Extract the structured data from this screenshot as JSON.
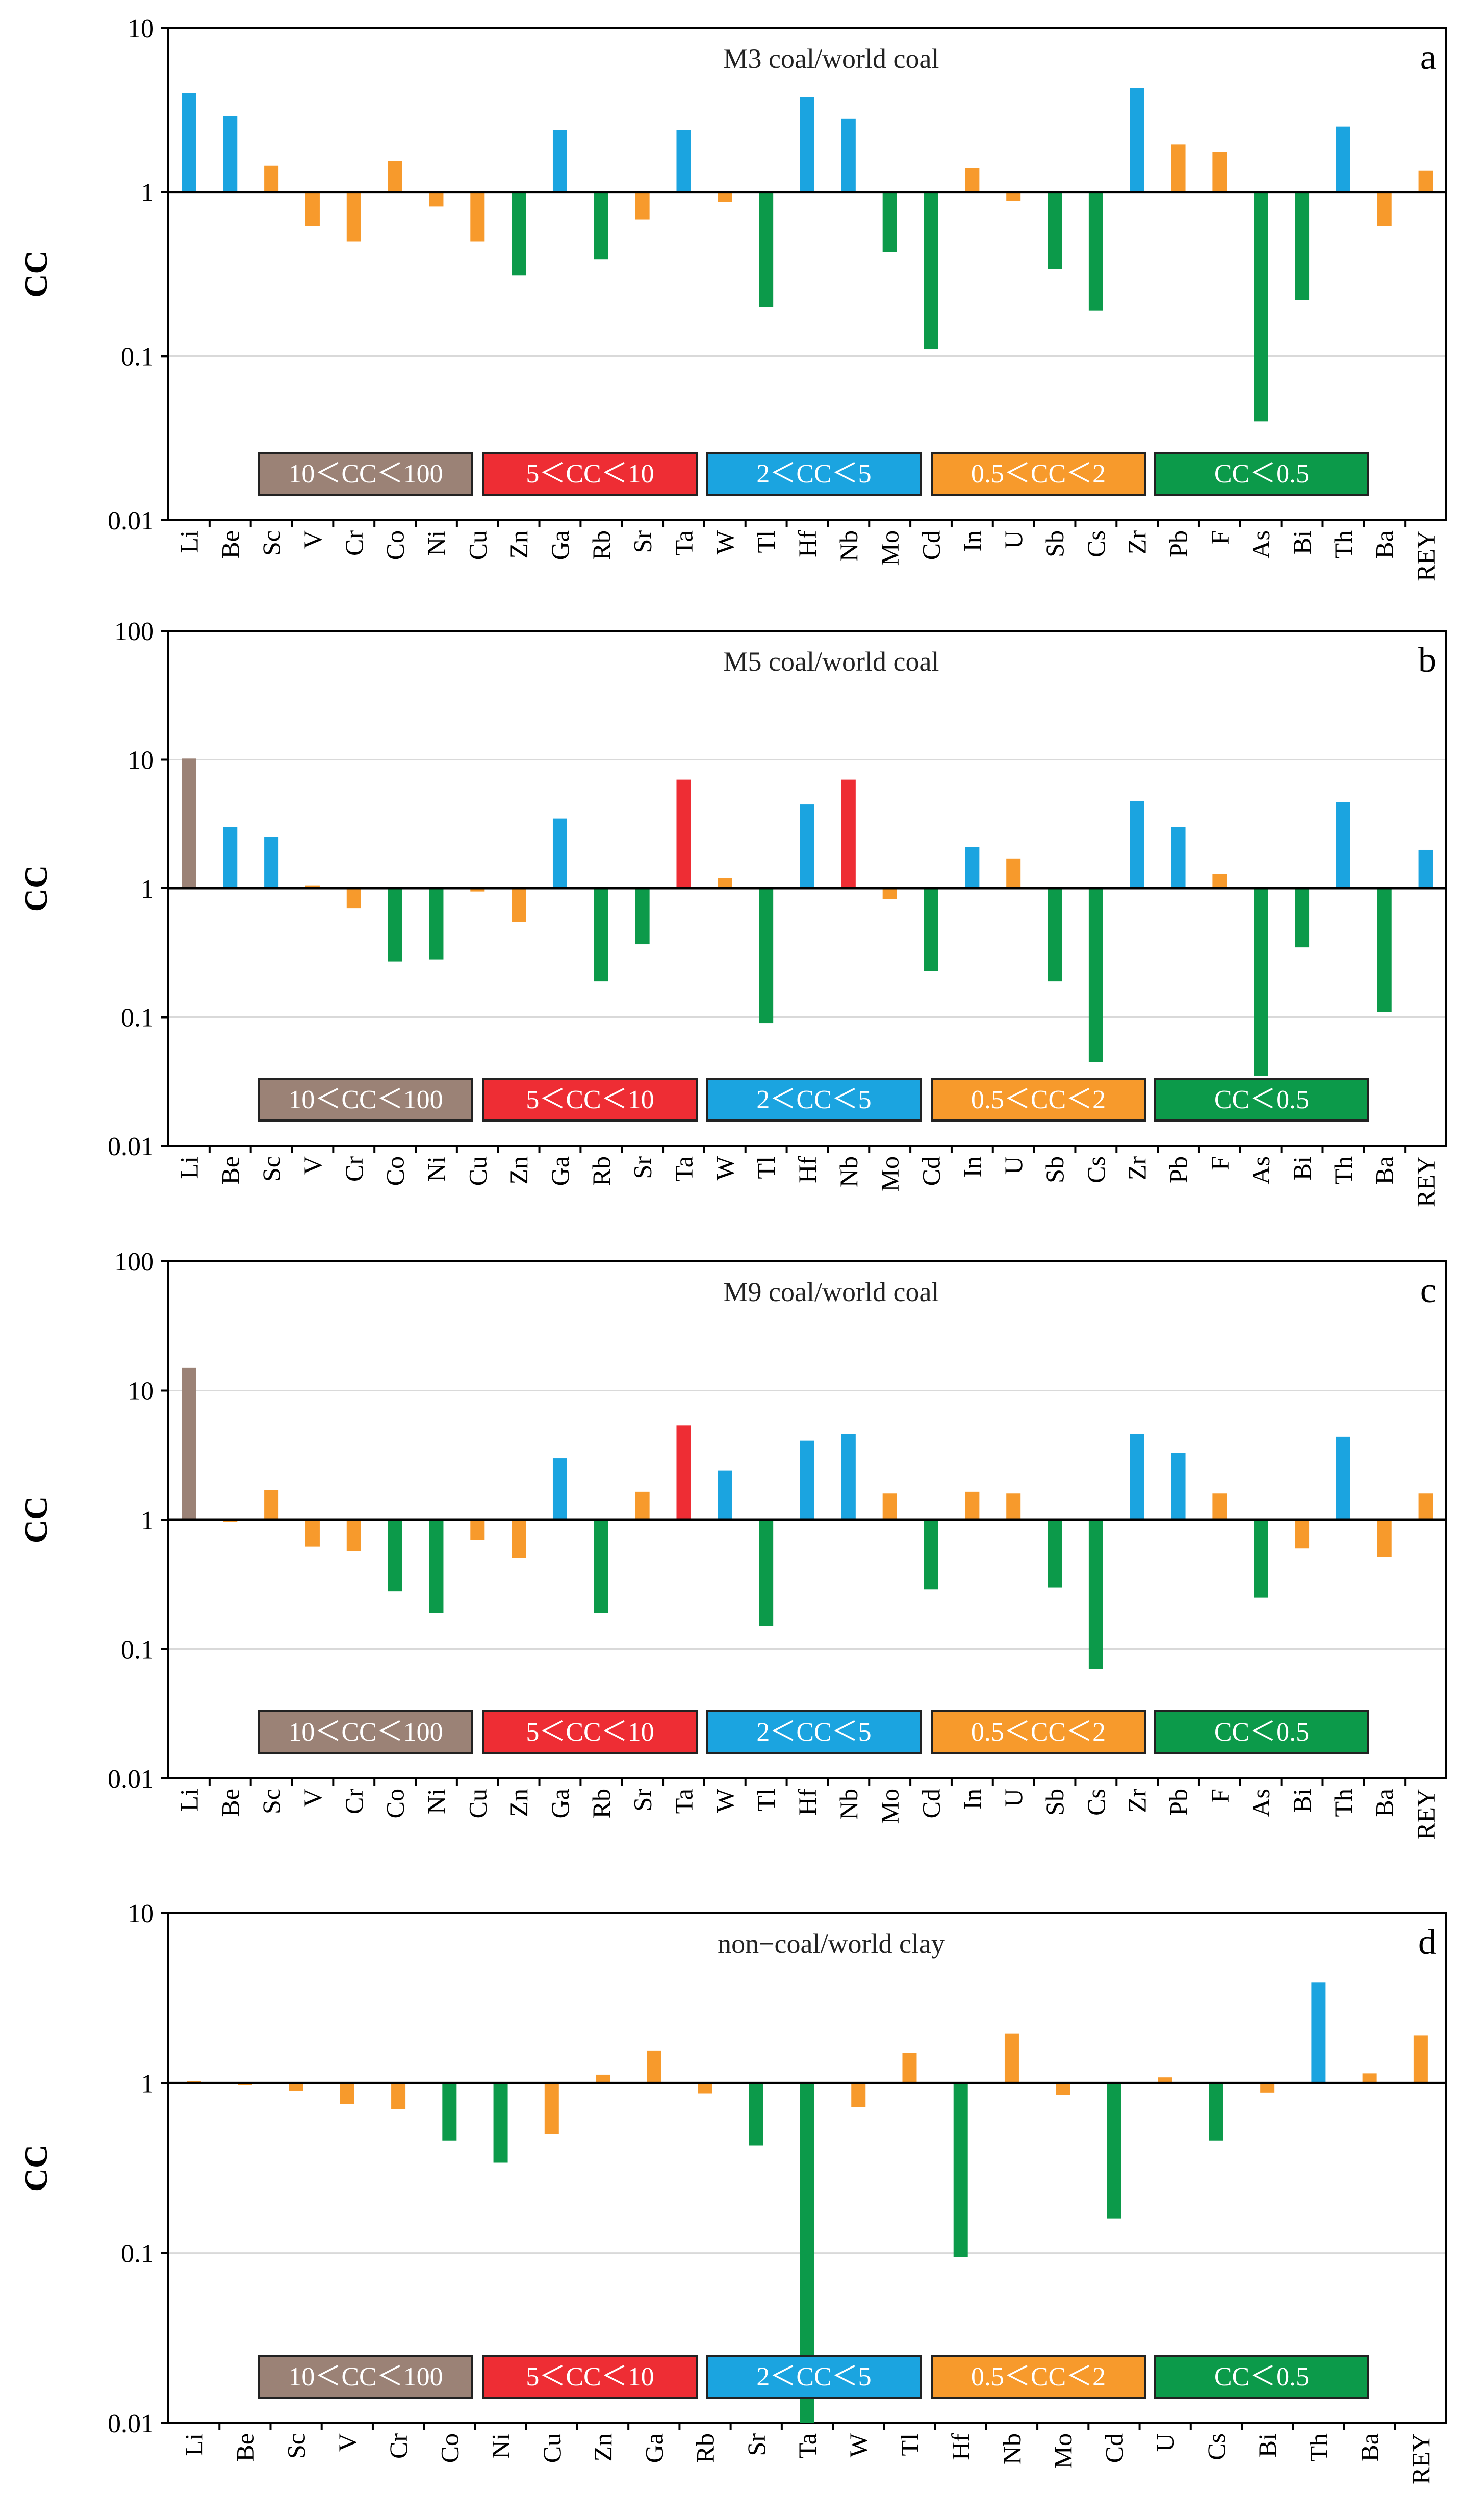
{
  "colors": {
    "brown": "#9b8276",
    "red": "#ee2d34",
    "blue": "#1ba4e0",
    "orange": "#f79a2c",
    "green": "#0c9a4a",
    "grid": "#d9d9d9",
    "axis": "#000000"
  },
  "legend": [
    {
      "label": "10＜CC＜100",
      "color": "#9b8276"
    },
    {
      "label": "5＜CC＜10",
      "color": "#ee2d34"
    },
    {
      "label": "2＜CC＜5",
      "color": "#1ba4e0"
    },
    {
      "label": "0.5＜CC＜2",
      "color": "#f79a2c"
    },
    {
      "label": "CC＜0.5",
      "color": "#0c9a4a"
    }
  ],
  "chart_data": [
    {
      "type": "bar",
      "panel": "a",
      "title": "M3 coal/world coal",
      "ylabel": "CC",
      "yscale": "log",
      "ylim": [
        0.01,
        10
      ],
      "yticks": [
        "0.01",
        "0.1",
        "1",
        "10"
      ],
      "categories": [
        "Li",
        "Be",
        "Sc",
        "V",
        "Cr",
        "Co",
        "Ni",
        "Cu",
        "Zn",
        "Ga",
        "Rb",
        "Sr",
        "Ta",
        "W",
        "Tl",
        "Hf",
        "Nb",
        "Mo",
        "Cd",
        "In",
        "U",
        "Sb",
        "Cs",
        "Zr",
        "Pb",
        "F",
        "As",
        "Bi",
        "Th",
        "Ba",
        "REY"
      ],
      "values": [
        4.0,
        2.9,
        1.45,
        0.62,
        0.5,
        1.55,
        0.82,
        0.5,
        0.31,
        2.4,
        0.39,
        0.68,
        2.4,
        0.87,
        0.2,
        3.8,
        2.8,
        0.43,
        0.11,
        1.4,
        0.88,
        0.34,
        0.19,
        4.3,
        1.95,
        1.75,
        0.04,
        0.22,
        2.5,
        0.62,
        1.35
      ]
    },
    {
      "type": "bar",
      "panel": "b",
      "title": "M5 coal/world  coal",
      "ylabel": "CC",
      "yscale": "log",
      "ylim": [
        0.01,
        100
      ],
      "yticks": [
        "0.01",
        "0.1",
        "1",
        "10",
        "100"
      ],
      "categories": [
        "Li",
        "Be",
        "Sc",
        "V",
        "Cr",
        "Co",
        "Ni",
        "Cu",
        "Zn",
        "Ga",
        "Rb",
        "Sr",
        "Ta",
        "W",
        "Tl",
        "Hf",
        "Nb",
        "Mo",
        "Cd",
        "In",
        "U",
        "Sb",
        "Cs",
        "Zr",
        "Pb",
        "F",
        "As",
        "Bi",
        "Th",
        "Ba",
        "REY"
      ],
      "values": [
        10.2,
        3.0,
        2.5,
        1.05,
        0.7,
        0.27,
        0.28,
        0.95,
        0.55,
        3.5,
        0.19,
        0.37,
        7.0,
        1.2,
        0.09,
        4.5,
        7.0,
        0.83,
        0.23,
        2.1,
        1.7,
        0.19,
        0.045,
        4.8,
        3.0,
        1.3,
        0.035,
        0.35,
        4.7,
        0.11,
        2.0
      ]
    },
    {
      "type": "bar",
      "panel": "c",
      "title": "M9 coal/world  coal",
      "ylabel": "CC",
      "yscale": "log",
      "ylim": [
        0.01,
        100
      ],
      "yticks": [
        "0.01",
        "0.1",
        "1",
        "10",
        "100"
      ],
      "categories": [
        "Li",
        "Be",
        "Sc",
        "V",
        "Cr",
        "Co",
        "Ni",
        "Cu",
        "Zn",
        "Ga",
        "Rb",
        "Sr",
        "Ta",
        "W",
        "Tl",
        "Hf",
        "Nb",
        "Mo",
        "Cd",
        "In",
        "U",
        "Sb",
        "Cs",
        "Zr",
        "Pb",
        "F",
        "As",
        "Bi",
        "Th",
        "Ba",
        "REY"
      ],
      "values": [
        15.0,
        0.97,
        1.7,
        0.62,
        0.57,
        0.28,
        0.19,
        0.7,
        0.51,
        3.0,
        0.19,
        1.65,
        5.4,
        2.4,
        0.15,
        4.1,
        4.6,
        1.6,
        0.29,
        1.65,
        1.6,
        0.3,
        0.07,
        4.6,
        3.3,
        1.6,
        0.25,
        0.6,
        4.4,
        0.52,
        1.6
      ]
    },
    {
      "type": "bar",
      "panel": "d",
      "title": "non−coal/world  clay",
      "ylabel": "CC",
      "yscale": "log",
      "ylim": [
        0.01,
        10
      ],
      "yticks": [
        "0.01",
        "0.1",
        "1",
        "10"
      ],
      "categories": [
        "Li",
        "Be",
        "Sc",
        "V",
        "Cr",
        "Co",
        "Ni",
        "Cu",
        "Zn",
        "Ga",
        "Rb",
        "Sr",
        "Ta",
        "W",
        "Tl",
        "Hf",
        "Nb",
        "Mo",
        "Cd",
        "U",
        "Cs",
        "Bi",
        "Th",
        "Ba",
        "REY"
      ],
      "values": [
        1.03,
        1.0,
        0.9,
        0.75,
        0.7,
        0.46,
        0.34,
        0.5,
        1.12,
        1.55,
        0.87,
        0.43,
        0.01,
        0.72,
        1.5,
        0.095,
        1.95,
        0.85,
        0.16,
        1.08,
        0.46,
        0.88,
        3.9,
        1.14,
        1.9
      ]
    }
  ]
}
